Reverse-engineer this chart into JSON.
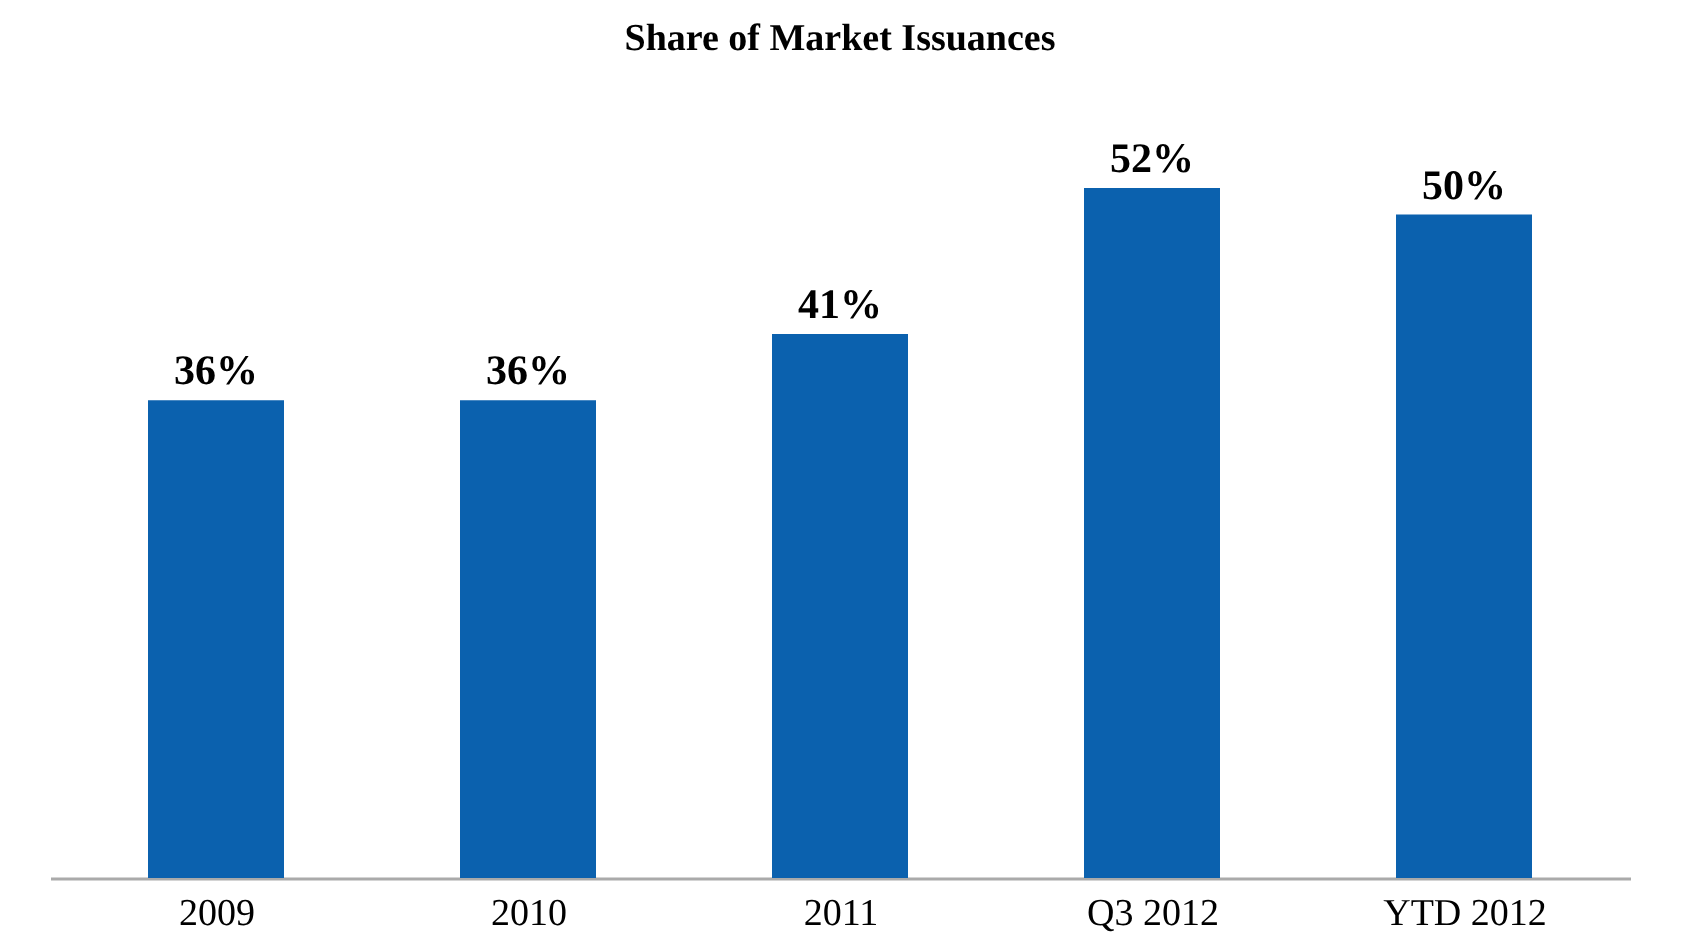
{
  "chart_data": {
    "type": "bar",
    "title": "Share of Market Issuances",
    "categories": [
      "2009",
      "2010",
      "2011",
      "Q3 2012",
      "YTD 2012"
    ],
    "values": [
      36,
      36,
      41,
      52,
      50
    ],
    "value_labels": [
      "36%",
      "36%",
      "41%",
      "52%",
      "50%"
    ],
    "color": "#0b61ae",
    "tick_labels": "x"
  }
}
